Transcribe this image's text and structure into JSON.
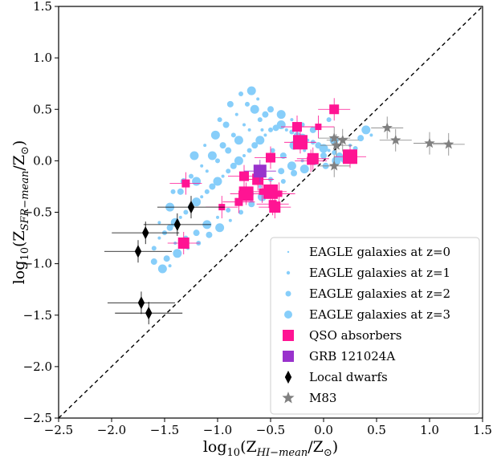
{
  "chart_data": {
    "type": "scatter",
    "title": "",
    "xlabel": {
      "main": "log",
      "base": "10",
      "open": "(Z",
      "sub": "HI−mean",
      "close": "/Z",
      "sun": "⊙",
      "end": ")"
    },
    "ylabel": {
      "main": "log",
      "base": "10",
      "open": "(Z",
      "sub": "SFR−mean",
      "close": "/Z",
      "sun": "⊙",
      "end": ")"
    },
    "xlim": [
      -2.5,
      1.5
    ],
    "ylim": [
      -2.5,
      1.5
    ],
    "xticks": [
      -2.5,
      -2.0,
      -1.5,
      -1.0,
      -0.5,
      0.0,
      0.5,
      1.0,
      1.5
    ],
    "yticks": [
      -2.5,
      -2.0,
      -1.5,
      -1.0,
      -0.5,
      0.0,
      0.5,
      1.0,
      1.5
    ],
    "xtick_labels": [
      "−2.5",
      "−2.0",
      "−1.5",
      "−1.0",
      "−0.5",
      "0.0",
      "0.5",
      "1.0",
      "1.5"
    ],
    "ytick_labels": [
      "−2.5",
      "−2.0",
      "−1.5",
      "−1.0",
      "−0.5",
      "0.0",
      "0.5",
      "1.0",
      "1.5"
    ],
    "one_to_one_line": true,
    "grid": false,
    "legend_position": "lower-right",
    "legend": [
      {
        "label": "EAGLE galaxies at z=0",
        "marker": "dot-tiny",
        "color": "#87CEFA"
      },
      {
        "label": "EAGLE galaxies at z=1",
        "marker": "dot-small",
        "color": "#87CEFA"
      },
      {
        "label": "EAGLE galaxies at z=2",
        "marker": "dot-medium",
        "color": "#87CEFA"
      },
      {
        "label": "EAGLE galaxies at z=3",
        "marker": "dot-large",
        "color": "#87CEFA"
      },
      {
        "label": "QSO absorbers",
        "marker": "square",
        "color": "#FF1493"
      },
      {
        "label": "GRB 121024A",
        "marker": "square",
        "color": "#9932CC"
      },
      {
        "label": "Local dwarfs",
        "marker": "diamond",
        "color": "#000000"
      },
      {
        "label": "M83",
        "marker": "star",
        "color": "#808080"
      }
    ],
    "series": [
      {
        "name": "EAGLE galaxies",
        "marker": "dot",
        "color": "#87CEFA",
        "note_region": "dense cloud",
        "points": [
          [
            -1.55,
            -0.75
          ],
          [
            -1.5,
            -0.7
          ],
          [
            -1.45,
            -0.65
          ],
          [
            -1.4,
            -0.6
          ],
          [
            -1.35,
            -0.55
          ],
          [
            -1.3,
            -0.5
          ],
          [
            -1.25,
            -0.45
          ],
          [
            -1.2,
            -0.4
          ],
          [
            -1.15,
            -0.35
          ],
          [
            -1.1,
            -0.3
          ],
          [
            -1.05,
            -0.25
          ],
          [
            -1.0,
            -0.2
          ],
          [
            -0.95,
            -0.15
          ],
          [
            -0.9,
            -0.1
          ],
          [
            -0.85,
            -0.05
          ],
          [
            -0.8,
            0.0
          ],
          [
            -0.75,
            0.05
          ],
          [
            -0.7,
            0.1
          ],
          [
            -0.65,
            0.15
          ],
          [
            -0.6,
            0.2
          ],
          [
            -0.55,
            0.25
          ],
          [
            -0.5,
            0.3
          ],
          [
            -0.45,
            0.32
          ],
          [
            -0.4,
            0.35
          ],
          [
            -0.35,
            0.3
          ],
          [
            -0.3,
            0.28
          ],
          [
            -0.25,
            0.25
          ],
          [
            -0.2,
            0.22
          ],
          [
            -0.15,
            0.2
          ],
          [
            -0.1,
            0.18
          ],
          [
            -0.05,
            0.15
          ],
          [
            0.0,
            0.12
          ],
          [
            0.05,
            0.1
          ],
          [
            0.1,
            0.08
          ],
          [
            0.15,
            0.05
          ],
          [
            0.2,
            0.02
          ],
          [
            -1.4,
            -0.8
          ],
          [
            -1.3,
            -0.75
          ],
          [
            -1.2,
            -0.7
          ],
          [
            -1.1,
            -0.62
          ],
          [
            -1.0,
            -0.55
          ],
          [
            -0.9,
            -0.48
          ],
          [
            -0.8,
            -0.4
          ],
          [
            -0.7,
            -0.32
          ],
          [
            -0.6,
            -0.25
          ],
          [
            -0.5,
            -0.18
          ],
          [
            -0.4,
            -0.1
          ],
          [
            -0.3,
            -0.05
          ],
          [
            -0.2,
            0.0
          ],
          [
            -0.1,
            0.02
          ],
          [
            0.0,
            0.05
          ],
          [
            -1.2,
            -0.2
          ],
          [
            -1.1,
            -0.1
          ],
          [
            -1.0,
            0.0
          ],
          [
            -0.9,
            0.1
          ],
          [
            -0.8,
            0.2
          ],
          [
            -0.7,
            0.3
          ],
          [
            -0.6,
            0.4
          ],
          [
            -0.55,
            0.45
          ],
          [
            -0.65,
            0.5
          ],
          [
            -0.75,
            0.35
          ],
          [
            -0.85,
            0.25
          ],
          [
            -0.95,
            0.15
          ],
          [
            -1.05,
            0.05
          ],
          [
            -1.15,
            -0.05
          ],
          [
            -1.25,
            -0.15
          ],
          [
            -1.35,
            -0.3
          ],
          [
            -1.45,
            -0.45
          ],
          [
            -1.55,
            -0.6
          ],
          [
            -1.6,
            -0.85
          ],
          [
            -1.48,
            -0.95
          ],
          [
            -1.38,
            -0.9
          ],
          [
            -1.28,
            -0.85
          ],
          [
            -1.18,
            -0.8
          ],
          [
            -1.08,
            -0.72
          ],
          [
            -0.98,
            -0.65
          ],
          [
            -0.88,
            -0.58
          ],
          [
            -0.78,
            -0.5
          ],
          [
            -0.68,
            -0.42
          ],
          [
            -0.58,
            -0.35
          ],
          [
            -0.48,
            -0.28
          ],
          [
            -0.38,
            -0.2
          ],
          [
            -0.28,
            -0.12
          ],
          [
            -0.18,
            -0.08
          ],
          [
            -0.82,
            0.45
          ],
          [
            -0.72,
            0.55
          ],
          [
            -0.92,
            0.35
          ],
          [
            -1.02,
            0.25
          ],
          [
            -0.62,
            0.6
          ],
          [
            -0.78,
            0.65
          ],
          [
            -0.5,
            0.5
          ],
          [
            -0.4,
            0.45
          ],
          [
            -0.3,
            0.4
          ],
          [
            -0.2,
            0.35
          ],
          [
            -0.1,
            0.3
          ],
          [
            0.1,
            0.2
          ],
          [
            0.25,
            0.15
          ],
          [
            0.3,
            0.12
          ],
          [
            0.35,
            0.22
          ],
          [
            0.4,
            0.3
          ],
          [
            0.45,
            0.25
          ],
          [
            0.05,
            0.4
          ],
          [
            -1.6,
            -0.98
          ],
          [
            -1.52,
            -1.05
          ],
          [
            -1.45,
            -1.02
          ],
          [
            -1.42,
            -0.3
          ],
          [
            -1.32,
            -0.2
          ],
          [
            -1.22,
            0.05
          ],
          [
            -1.12,
            0.15
          ],
          [
            -0.98,
            0.4
          ],
          [
            -0.88,
            0.55
          ],
          [
            -0.68,
            0.68
          ],
          [
            -0.58,
            0.3
          ],
          [
            -0.48,
            0.1
          ],
          [
            -0.38,
            0.05
          ],
          [
            -0.28,
            0.15
          ],
          [
            -0.18,
            0.1
          ],
          [
            -0.08,
            -0.02
          ],
          [
            0.02,
            -0.05
          ],
          [
            0.12,
            0.0
          ]
        ]
      },
      {
        "name": "QSO absorbers",
        "marker": "square",
        "color": "#FF1493",
        "points": [
          [
            -1.3,
            -0.22
          ],
          [
            -1.32,
            -0.8
          ],
          [
            -0.96,
            -0.45
          ],
          [
            -0.75,
            -0.15
          ],
          [
            -0.73,
            -0.32
          ],
          [
            -0.8,
            -0.4
          ],
          [
            -0.62,
            -0.18
          ],
          [
            -0.58,
            -0.3
          ],
          [
            -0.5,
            0.03
          ],
          [
            -0.5,
            -0.3
          ],
          [
            -0.48,
            -0.42
          ],
          [
            -0.46,
            -0.45
          ],
          [
            -0.42,
            -0.32
          ],
          [
            -0.25,
            0.33
          ],
          [
            -0.22,
            0.18
          ],
          [
            -0.12,
            0.0
          ],
          [
            -0.1,
            0.02
          ],
          [
            -0.05,
            0.33
          ],
          [
            0.1,
            0.5
          ],
          [
            0.25,
            0.04
          ]
        ]
      },
      {
        "name": "GRB 121024A",
        "marker": "square",
        "color": "#9932CC",
        "points": [
          [
            -0.6,
            -0.1
          ]
        ]
      },
      {
        "name": "Local dwarfs",
        "marker": "diamond",
        "color": "#000000",
        "points": [
          [
            -1.25,
            -0.45
          ],
          [
            -1.38,
            -0.62
          ],
          [
            -1.68,
            -0.7
          ],
          [
            -1.75,
            -0.88
          ],
          [
            -1.72,
            -1.38
          ],
          [
            -1.65,
            -1.48
          ]
        ]
      },
      {
        "name": "M83",
        "marker": "star",
        "color": "#808080",
        "points": [
          [
            0.1,
            0.22
          ],
          [
            0.18,
            0.2
          ],
          [
            0.12,
            0.15
          ],
          [
            0.6,
            0.32
          ],
          [
            0.68,
            0.2
          ],
          [
            1.0,
            0.17
          ],
          [
            1.18,
            0.16
          ],
          [
            0.1,
            -0.05
          ]
        ]
      }
    ]
  }
}
